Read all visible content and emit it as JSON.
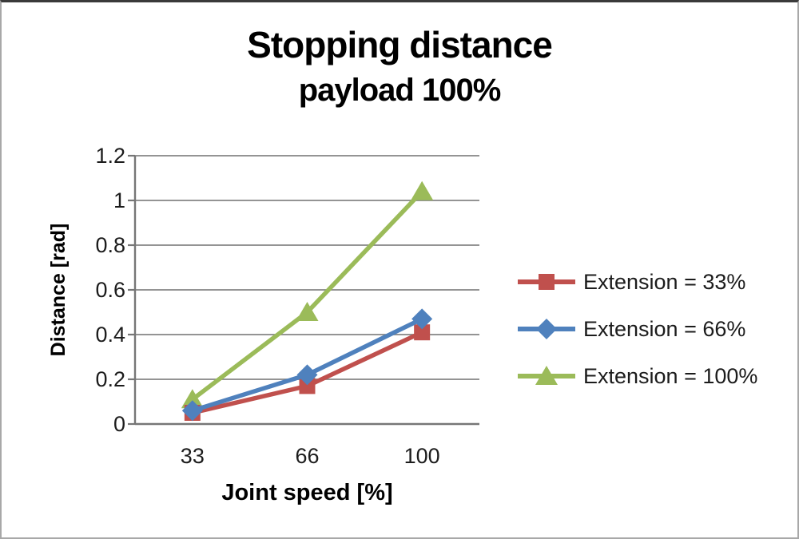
{
  "chart_data": {
    "type": "line",
    "title": "Stopping distance",
    "subtitle": "payload 100%",
    "xlabel": "Joint speed [%]",
    "ylabel": "Distance [rad]",
    "categories": [
      "33",
      "66",
      "100"
    ],
    "series": [
      {
        "name": "Extension = 33%",
        "values": [
          0.05,
          0.17,
          0.41
        ],
        "color": "#C0504D",
        "marker": "square"
      },
      {
        "name": "Extension = 66%",
        "values": [
          0.06,
          0.22,
          0.47
        ],
        "color": "#4F81BD",
        "marker": "diamond"
      },
      {
        "name": "Extension = 100%",
        "values": [
          0.11,
          0.5,
          1.04
        ],
        "color": "#9BBB59",
        "marker": "triangle"
      }
    ],
    "ylim": [
      0,
      1.2
    ],
    "ytick_step": 0.2,
    "yticks": [
      "0",
      "0.2",
      "0.4",
      "0.6",
      "0.8",
      "1",
      "1.2"
    ],
    "grid": "horizontal",
    "legend_position": "right",
    "gridline_color": "#848484",
    "axis_color": "#767676",
    "text_color": "#1c1c1c"
  }
}
